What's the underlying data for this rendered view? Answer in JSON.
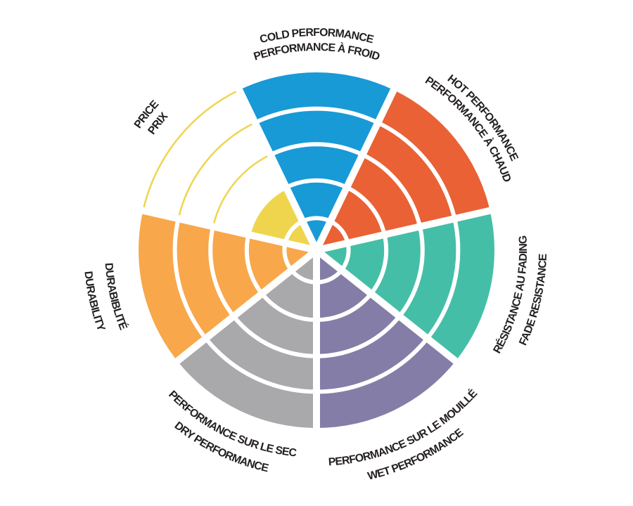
{
  "chart_data": {
    "type": "pie",
    "variant": "radial-rating-wheel",
    "description": "Tire criteria rating wheel: 7 sectors, each divided into 5 concentric rings; filled rings indicate the score out of 5.",
    "rings": 5,
    "value_max": 5,
    "background": "#FFFFFF",
    "text_color": "#231F20",
    "separator_color": "#FFFFFF",
    "segments": [
      {
        "id": "cold-performance",
        "line1": "COLD PERFORMANCE",
        "line2": "PERFORMANCE À FROID",
        "value": 5,
        "color": "#189AD6"
      },
      {
        "id": "hot-performance",
        "line1": "HOT PERFORMANCE",
        "line2": "PERFORMANCE À CHAUD",
        "value": 5,
        "color": "#E96135"
      },
      {
        "id": "fade-resistance",
        "line1": "RÉSISTANCE AU FADING",
        "line2": "FADE RESISTANCE",
        "value": 5,
        "color": "#45BEA7"
      },
      {
        "id": "wet-performance",
        "line1": "PERFORMANCE SUR LE MOUILLÉ",
        "line2": "WET PERFORMANCE",
        "value": 5,
        "color": "#847DA7"
      },
      {
        "id": "dry-performance",
        "line1": "PERFORMANCE SUR LE SEC",
        "line2": "DRY PERFORMANCE",
        "value": 5,
        "color": "#A9A9AB"
      },
      {
        "id": "durability",
        "line1": "DURABIBLITÉ",
        "line2": "DURABILITY",
        "value": 5,
        "color": "#F8A74A"
      },
      {
        "id": "price",
        "line1": "PRICE",
        "line2": "PRIX",
        "value": 2,
        "color": "#EFD54E"
      }
    ]
  }
}
